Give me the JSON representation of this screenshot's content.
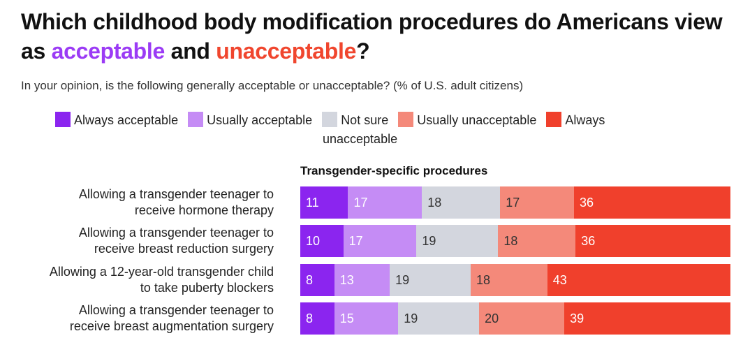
{
  "header": {
    "title_part1": "Which childhood body modification procedures do Americans view as ",
    "title_acceptable": "acceptable",
    "title_and": " and ",
    "title_unacceptable": "unacceptable",
    "title_end": "?",
    "subtitle": "In your opinion, is the following generally acceptable or unacceptable? (% of U.S. adult citizens)"
  },
  "legend": {
    "items": [
      {
        "label": "Always acceptable",
        "color": "#8b25ef"
      },
      {
        "label": "Usually acceptable",
        "color": "#c58cf5"
      },
      {
        "label": "Not sure",
        "color": "#d3d6de"
      },
      {
        "label": "Usually unacceptable",
        "color": "#f4897a"
      },
      {
        "label": "Always",
        "color": "#f0402c"
      }
    ],
    "wrap_text": "unacceptable"
  },
  "chart_data": {
    "type": "bar",
    "stacked": true,
    "orientation": "horizontal",
    "title": "Transgender-specific procedures",
    "categories": [
      "Allowing a transgender teenager to receive hormone therapy",
      "Allowing a transgender teenager to receive breast reduction surgery",
      "Allowing a 12-year-old transgender child to take puberty blockers",
      "Allowing a transgender teenager to receive breast augmentation surgery"
    ],
    "category_lines": [
      [
        "Allowing a transgender teenager to",
        "receive hormone therapy"
      ],
      [
        "Allowing a transgender teenager to",
        "receive breast reduction surgery"
      ],
      [
        "Allowing a 12-year-old transgender child",
        "to take puberty blockers"
      ],
      [
        "Allowing a transgender teenager to",
        "receive breast augmentation surgery"
      ]
    ],
    "series": [
      {
        "name": "Always acceptable",
        "color": "#8b25ef",
        "label_color": "light",
        "values": [
          11,
          10,
          8,
          8
        ]
      },
      {
        "name": "Usually acceptable",
        "color": "#c58cf5",
        "label_color": "light",
        "values": [
          17,
          17,
          13,
          15
        ]
      },
      {
        "name": "Not sure",
        "color": "#d3d6de",
        "label_color": "dark",
        "values": [
          18,
          19,
          19,
          19
        ]
      },
      {
        "name": "Usually unacceptable",
        "color": "#f4897a",
        "label_color": "dark",
        "values": [
          17,
          18,
          18,
          20
        ]
      },
      {
        "name": "Always unacceptable",
        "color": "#f0402c",
        "label_color": "light",
        "values": [
          36,
          36,
          43,
          39
        ]
      }
    ],
    "xlim": [
      0,
      100
    ],
    "grid": false
  }
}
